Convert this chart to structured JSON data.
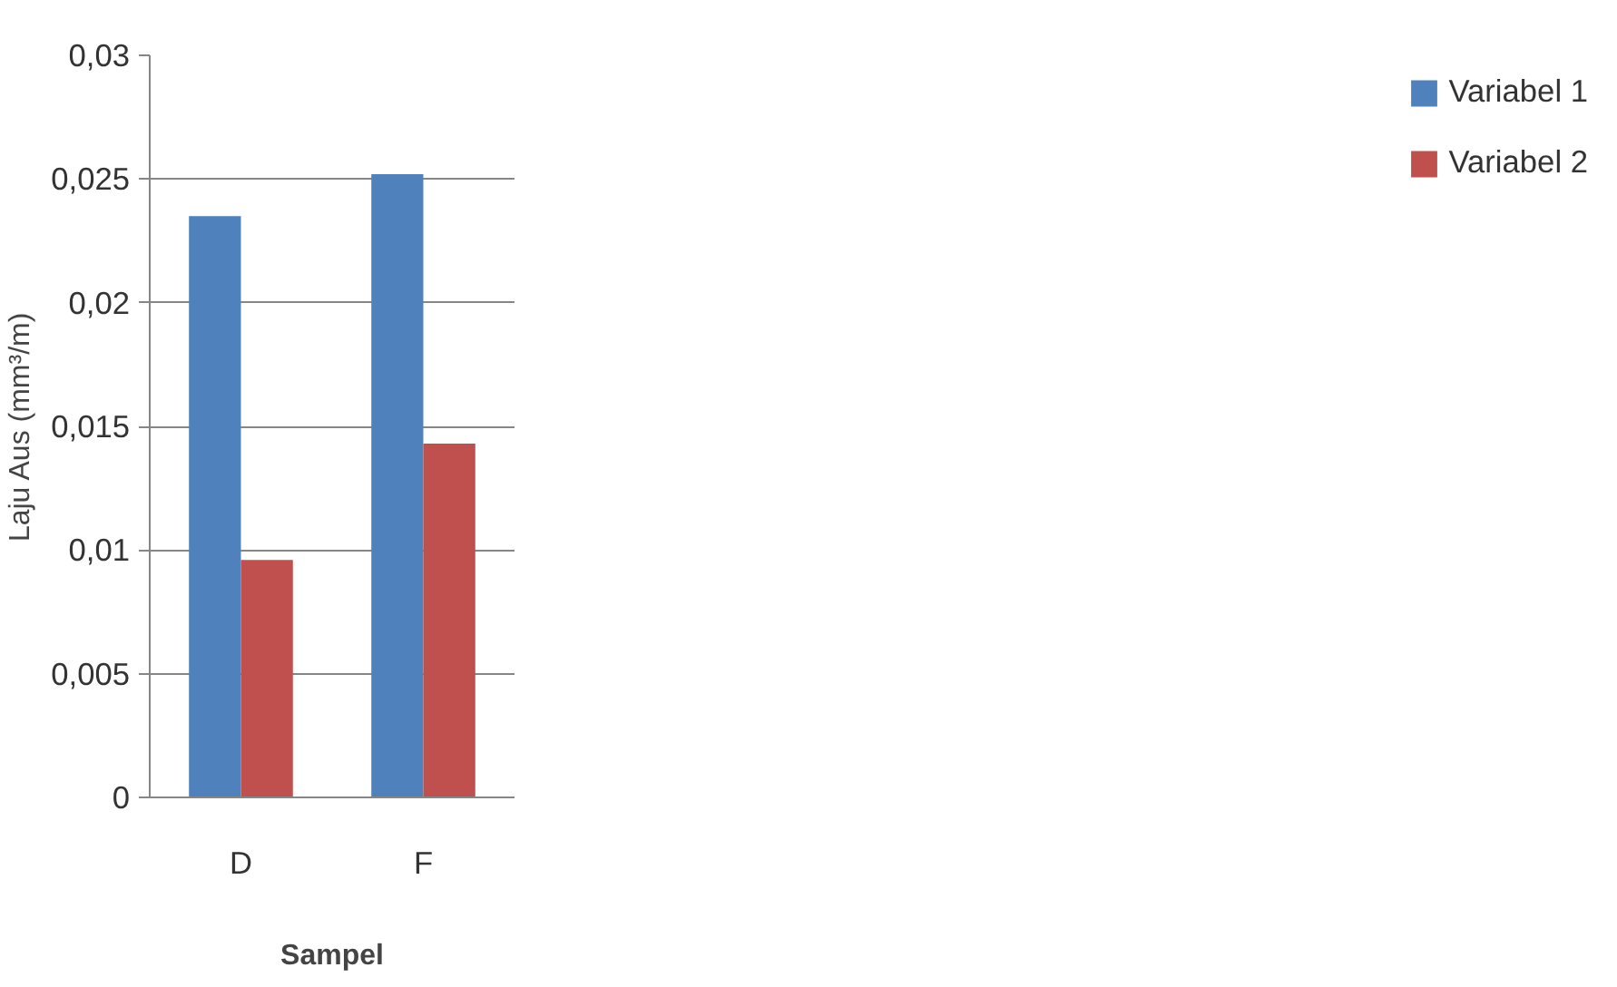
{
  "chart_data": {
    "type": "bar",
    "xlabel": "Sampel",
    "ylabel": "Laju Aus (mm³/m)",
    "categories": [
      "D",
      "F"
    ],
    "series": [
      {
        "name": "Variabel 1",
        "color": "#4f81bd",
        "values": [
          0.0235,
          0.0252
        ]
      },
      {
        "name": "Variabel 2",
        "color": "#c0504d",
        "values": [
          0.0096,
          0.0143
        ]
      }
    ],
    "ylim": [
      0,
      0.03
    ],
    "yticks": [
      0,
      {
        "value": 0.005,
        "label": "0,005"
      },
      {
        "value": 0.01,
        "label": "0,01"
      },
      {
        "value": 0.015,
        "label": "0,015"
      },
      {
        "value": 0.02,
        "label": "0,02"
      },
      {
        "value": 0.025,
        "label": "0,025"
      },
      {
        "value": 0.03,
        "label": "0,03"
      }
    ],
    "grid": "y",
    "legend": "right"
  }
}
